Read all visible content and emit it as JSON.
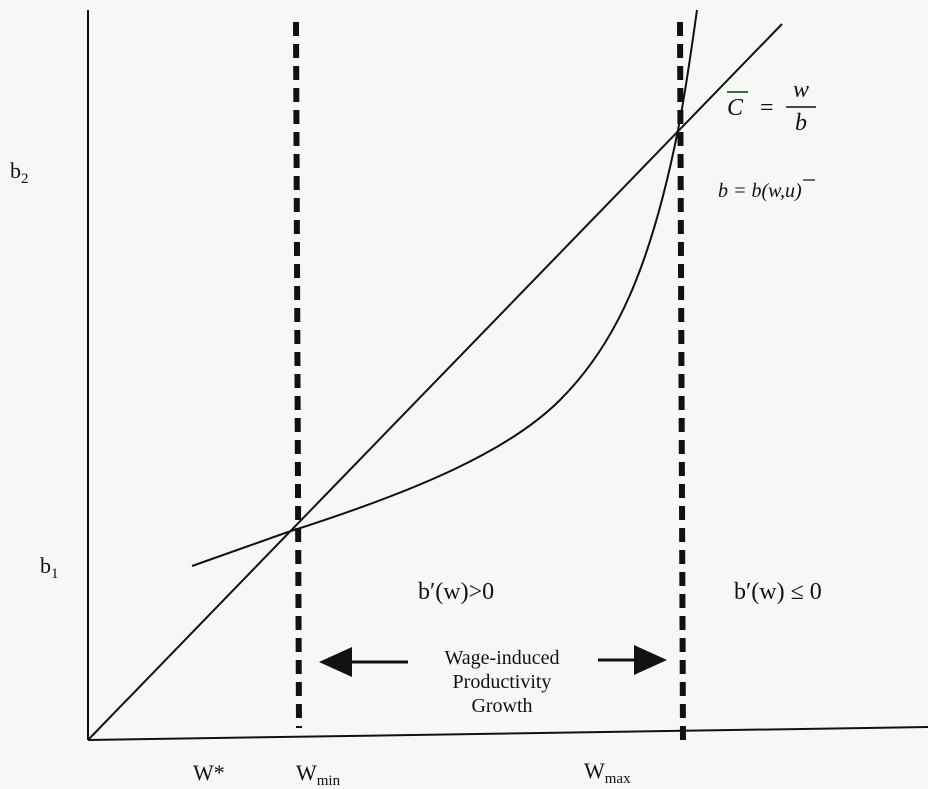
{
  "axes": {
    "y_tick_top": "b",
    "y_tick_top_sub": "2",
    "y_tick_bottom": "b",
    "y_tick_bottom_sub": "1",
    "x_tick_star": "W*",
    "x_tick_min": "W",
    "x_tick_min_sub": "min",
    "x_tick_max": "W",
    "x_tick_max_sub": "max"
  },
  "curve_labels": {
    "cost_line_lhs": "C",
    "cost_line_eq": "=",
    "cost_line_num": "w",
    "cost_line_den": "b",
    "productivity_curve": "b = b(w,",
    "productivity_curve_u": "u",
    "productivity_curve_close": ")"
  },
  "regions": {
    "left_condition": "b′(w)>0",
    "right_condition": "b′(w) ≤ 0"
  },
  "annotation": {
    "line1": "Wage-induced",
    "line2": "Productivity",
    "line3": "Growth"
  },
  "colors": {
    "ink": "#111111",
    "paper": "#f7f7f5",
    "accent_bar": "#3a6b3a"
  }
}
